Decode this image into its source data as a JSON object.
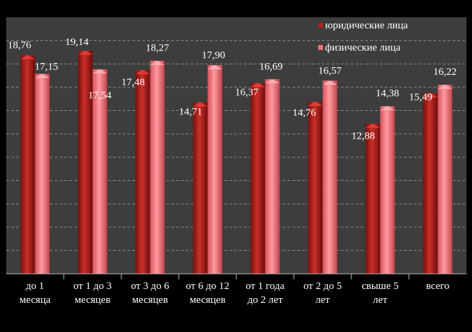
{
  "chart_data": {
    "type": "bar",
    "categories": [
      [
        "до 1",
        "месяца"
      ],
      [
        "от 1 до 3",
        "месяцев"
      ],
      [
        "от 3 до 6",
        "месяцев"
      ],
      [
        "от 6 до 12",
        "месяцев"
      ],
      [
        "от 1 года",
        "до 2 лет"
      ],
      [
        "от 2 до 5",
        "лет"
      ],
      [
        "свыше 5",
        "лет"
      ],
      [
        "всего"
      ]
    ],
    "series": [
      {
        "name": "юридические лица",
        "values": [
          18.76,
          19.14,
          17.48,
          14.71,
          16.37,
          14.76,
          12.88,
          15.49
        ],
        "labels": [
          "18,76",
          "19,14",
          "17,48",
          "14,71",
          "16,37",
          "14,76",
          "12,88",
          "15,49"
        ],
        "color": "#b2201c"
      },
      {
        "name": "физические лица",
        "values": [
          17.15,
          17.54,
          18.27,
          17.9,
          16.69,
          16.57,
          14.38,
          16.22
        ],
        "labels": [
          "17,15",
          "17,54",
          "18,27",
          "17,90",
          "16,69",
          "16,57",
          "14,38",
          "16,22"
        ],
        "color": "#f0727a"
      }
    ],
    "ylim": [
      0,
      22
    ],
    "grid": true,
    "legend": "top-right",
    "plot_background": "#3d3d3d"
  }
}
